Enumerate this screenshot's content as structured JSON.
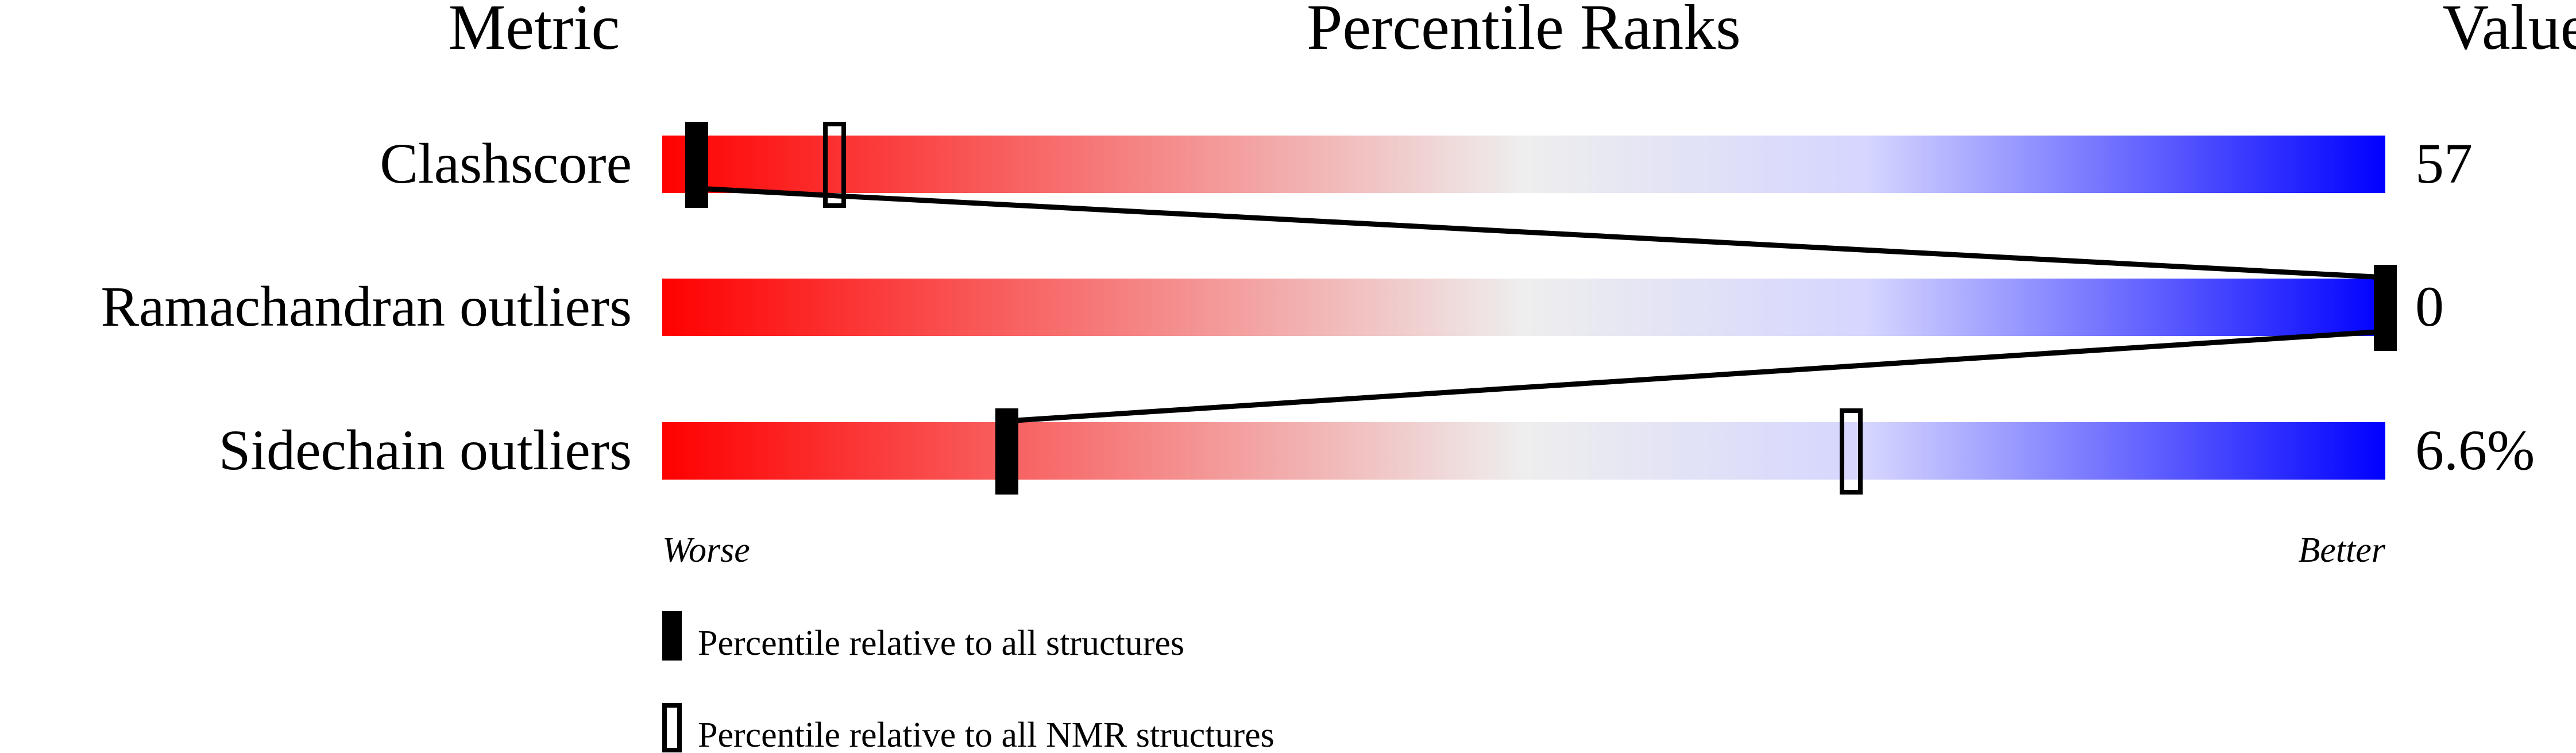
{
  "chart_data": {
    "type": "bar",
    "headers": {
      "metric": "Metric",
      "title": "Percentile Ranks",
      "value": "Value"
    },
    "metrics": [
      {
        "name": "Clashscore",
        "value": "57",
        "percentile_all": 2,
        "percentile_nmr": 10
      },
      {
        "name": "Ramachandran outliers",
        "value": "0",
        "percentile_all": 100,
        "percentile_nmr": null
      },
      {
        "name": "Sidechain outliers",
        "value": "6.6%",
        "percentile_all": 20,
        "percentile_nmr": 69
      }
    ],
    "xlim": [
      0,
      100
    ],
    "axis_labels": {
      "left": "Worse",
      "right": "Better"
    },
    "gradient_colors": [
      "#ff0000",
      "#eeeeee",
      "#d5d5ff",
      "#0000ff"
    ],
    "legend": [
      {
        "marker": "filled",
        "label": "Percentile relative to all structures"
      },
      {
        "marker": "hollow",
        "label": "Percentile relative to all NMR structures"
      }
    ],
    "legend_position": "bottom"
  }
}
